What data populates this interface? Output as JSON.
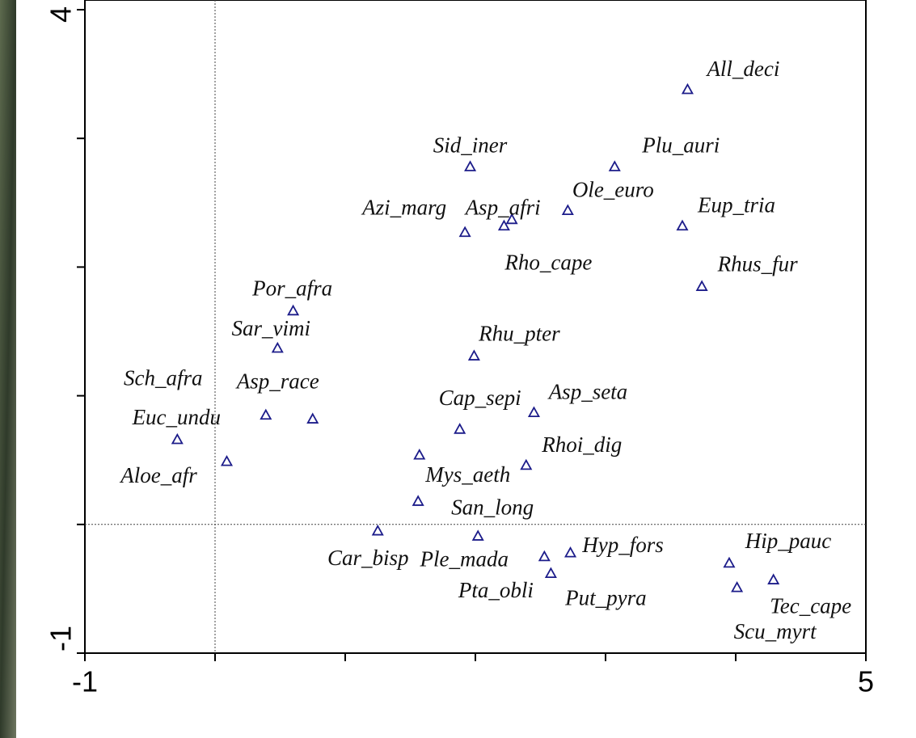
{
  "chart_data": {
    "type": "scatter",
    "labels": [
      "All_deci",
      "Sid_iner",
      "Plu_auri",
      "Ole_euro",
      "Asp_afri",
      "Rho_cape",
      "Azi_marg",
      "Eup_tria",
      "Rhus_fur",
      "Por_afra",
      "Sar_vimi",
      "Rhu_pter",
      "Sch_afra",
      "Asp_race",
      "Euc_undu",
      "Aloe_afr",
      "Asp_seta",
      "Cap_sepi",
      "Mys_aeth",
      "Rhoi_dig",
      "San_long",
      "Car_bisp",
      "Ple_mada",
      "Pta_obli",
      "Hyp_fors",
      "Put_pyra",
      "Hip_pauc",
      "Scu_myrt",
      "Tec_cape"
    ],
    "x": [
      3.63,
      1.96,
      3.07,
      2.71,
      2.28,
      2.22,
      1.92,
      3.59,
      3.74,
      0.6,
      0.48,
      1.99,
      0.39,
      0.75,
      -0.29,
      0.09,
      2.45,
      1.88,
      1.57,
      2.39,
      1.56,
      1.25,
      2.02,
      2.53,
      2.73,
      2.58,
      3.95,
      4.01,
      4.29
    ],
    "values": [
      3.38,
      2.78,
      2.78,
      2.44,
      2.37,
      2.32,
      2.27,
      2.32,
      1.85,
      1.66,
      1.37,
      1.31,
      0.85,
      0.82,
      0.66,
      0.49,
      0.87,
      0.74,
      0.54,
      0.46,
      0.18,
      -0.05,
      -0.09,
      -0.25,
      -0.22,
      -0.38,
      -0.3,
      -0.49,
      -0.43
    ],
    "color": "#1c1c8a",
    "xlim": [
      -1,
      5
    ],
    "ylim": [
      -1,
      4
    ],
    "xticks": [
      -1,
      5
    ],
    "yticks": [
      -1,
      4
    ],
    "xminorticks": [
      0,
      1,
      2,
      3,
      4
    ],
    "yminorticks": [
      0,
      1,
      2,
      3
    ],
    "xrefline": 0,
    "yrefline": 0
  }
}
